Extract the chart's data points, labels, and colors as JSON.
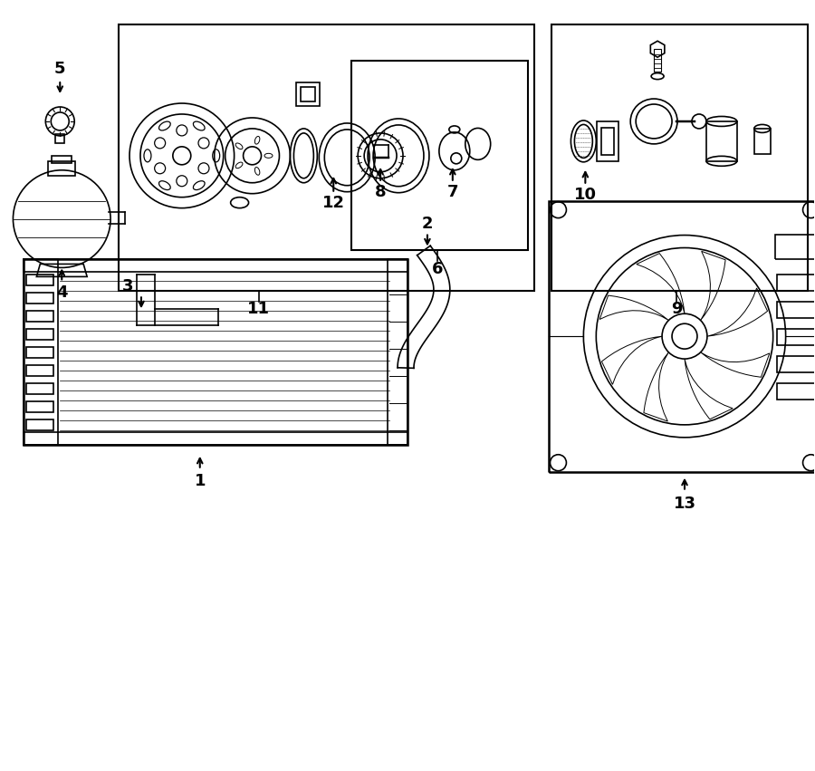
{
  "bg_color": "#ffffff",
  "line_color": "#000000",
  "figsize": [
    9.0,
    8.51
  ],
  "dpi": 100
}
